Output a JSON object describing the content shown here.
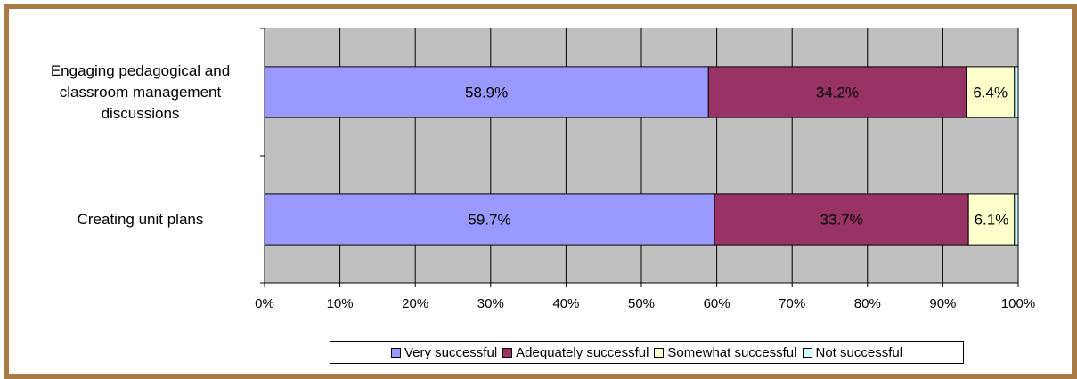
{
  "chart_data": {
    "type": "bar",
    "orientation": "horizontal",
    "stacked": true,
    "percent": true,
    "categories": [
      "Engaging pedagogical and classroom management discussions",
      "Creating unit plans"
    ],
    "category_lines": [
      [
        "Engaging pedagogical and",
        "classroom management",
        "discussions"
      ],
      [
        "Creating unit plans"
      ]
    ],
    "series": [
      {
        "name": "Very successful",
        "color": "#9999ff",
        "values": [
          58.9,
          59.7
        ],
        "labels": [
          "58.9%",
          "59.7%"
        ]
      },
      {
        "name": "Adequately successful",
        "color": "#993366",
        "values": [
          34.2,
          33.7
        ],
        "labels": [
          "34.2%",
          "33.7%"
        ]
      },
      {
        "name": "Somewhat successful",
        "color": "#ffffcc",
        "values": [
          6.4,
          6.1
        ],
        "labels": [
          "6.4%",
          "6.1%"
        ]
      },
      {
        "name": "Not successful",
        "color": "#ccffff",
        "values": [
          0.5,
          0.5
        ],
        "labels": [
          "",
          ""
        ]
      }
    ],
    "xticks": [
      "0%",
      "10%",
      "20%",
      "30%",
      "40%",
      "50%",
      "60%",
      "70%",
      "80%",
      "90%",
      "100%"
    ],
    "xlim": [
      0,
      100
    ],
    "grid": true,
    "plot_background": "#c0c0c0",
    "legend_position": "bottom",
    "title": "",
    "xlabel": "",
    "ylabel": ""
  }
}
